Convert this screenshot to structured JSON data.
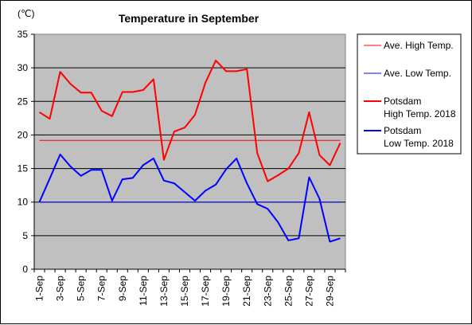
{
  "chart_data": {
    "type": "line",
    "title": "Temperature in September",
    "unit_label": "(℃)",
    "xlabel": "",
    "ylabel": "",
    "ylim": [
      0,
      35
    ],
    "yticks": [
      0,
      5,
      10,
      15,
      20,
      25,
      30,
      35
    ],
    "grid": true,
    "legend_position": "right",
    "x": [
      "1-Sep",
      "2-Sep",
      "3-Sep",
      "4-Sep",
      "5-Sep",
      "6-Sep",
      "7-Sep",
      "8-Sep",
      "9-Sep",
      "10-Sep",
      "11-Sep",
      "12-Sep",
      "13-Sep",
      "14-Sep",
      "15-Sep",
      "16-Sep",
      "17-Sep",
      "18-Sep",
      "19-Sep",
      "20-Sep",
      "21-Sep",
      "22-Sep",
      "23-Sep",
      "24-Sep",
      "25-Sep",
      "26-Sep",
      "27-Sep",
      "28-Sep",
      "29-Sep",
      "30-Sep"
    ],
    "x_tick_labels": [
      "1-Sep",
      "3-Sep",
      "5-Sep",
      "7-Sep",
      "9-Sep",
      "11-Sep",
      "13-Sep",
      "15-Sep",
      "17-Sep",
      "19-Sep",
      "21-Sep",
      "23-Sep",
      "25-Sep",
      "27-Sep",
      "29-Sep"
    ],
    "series": [
      {
        "name": "Ave. High Temp.",
        "color": "#ff0000",
        "stroke": "thin",
        "values": [
          19.2,
          19.2,
          19.2,
          19.2,
          19.2,
          19.2,
          19.2,
          19.2,
          19.2,
          19.2,
          19.2,
          19.2,
          19.2,
          19.2,
          19.2,
          19.2,
          19.2,
          19.2,
          19.2,
          19.2,
          19.2,
          19.2,
          19.2,
          19.2,
          19.2,
          19.2,
          19.2,
          19.2,
          19.2,
          19.2
        ]
      },
      {
        "name": "Ave. Low Temp.",
        "color": "#0000ff",
        "stroke": "thin",
        "values": [
          10,
          10,
          10,
          10,
          10,
          10,
          10,
          10,
          10,
          10,
          10,
          10,
          10,
          10,
          10,
          10,
          10,
          10,
          10,
          10,
          10,
          10,
          10,
          10,
          10,
          10,
          10,
          10,
          10,
          10
        ]
      },
      {
        "name": "Potsdam\nHigh Temp. 2018",
        "color": "#ff0000",
        "stroke": "thick",
        "values": [
          23.4,
          22.4,
          29.4,
          27.6,
          26.3,
          26.3,
          23.6,
          22.8,
          26.4,
          26.4,
          26.7,
          28.3,
          16.3,
          20.5,
          21.1,
          23,
          27.8,
          31.1,
          29.5,
          29.5,
          29.8,
          17.3,
          13.1,
          14,
          15,
          17.3,
          23.4,
          17,
          15.5,
          18.8
        ]
      },
      {
        "name": "Potsdam\nLow Temp. 2018",
        "color": "#0000ff",
        "stroke": "thick",
        "values": [
          10,
          13.5,
          17.1,
          15.3,
          13.9,
          14.8,
          14.8,
          10.2,
          13.4,
          13.6,
          15.5,
          16.5,
          13.2,
          12.8,
          11.5,
          10.2,
          11.7,
          12.6,
          14.9,
          16.5,
          12.8,
          9.7,
          9,
          7,
          4.3,
          4.6,
          13.7,
          10.5,
          4.1,
          4.6
        ]
      }
    ]
  }
}
